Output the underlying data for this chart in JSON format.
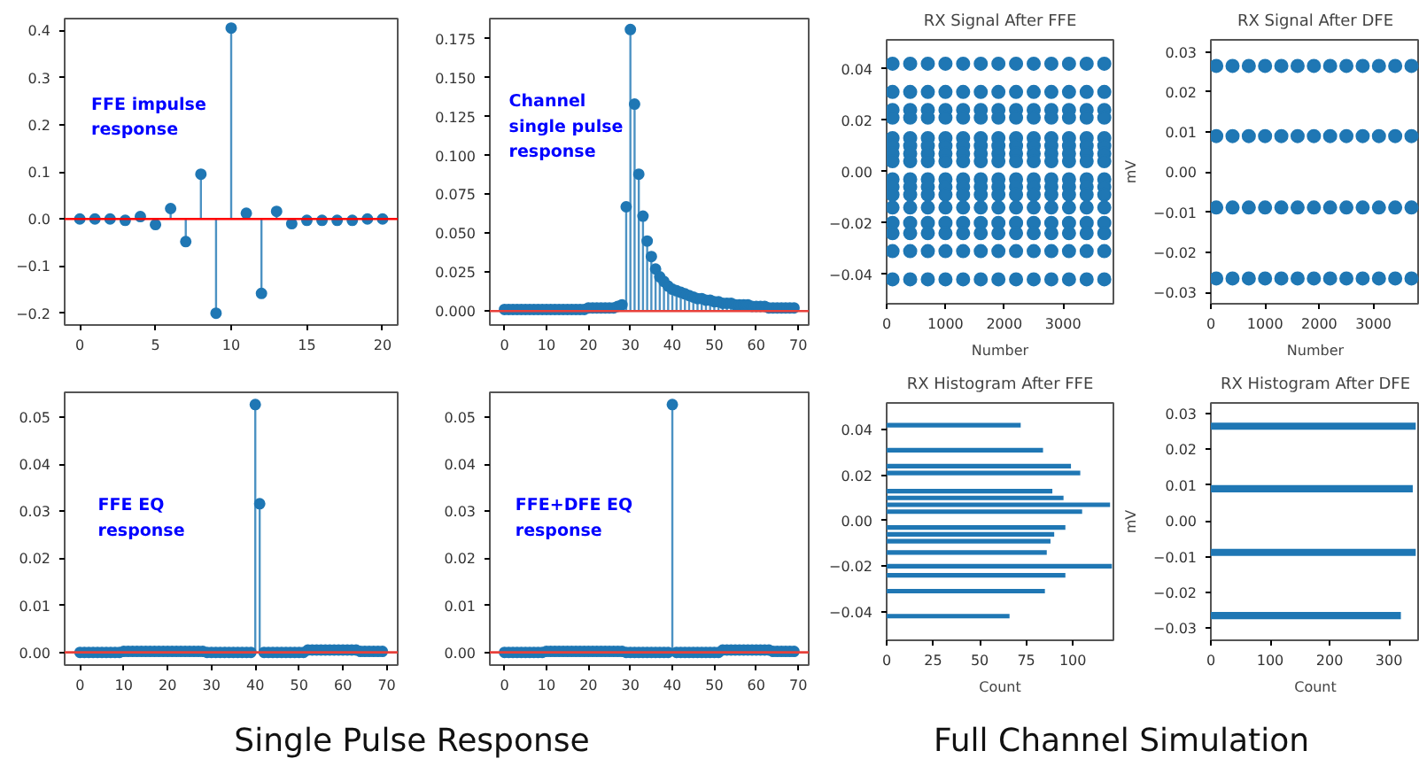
{
  "chart_data": [
    {
      "type": "lollipop",
      "annotations": [
        "FFE impulse\nresponse"
      ],
      "marker": "circle",
      "x": [
        0,
        1,
        2,
        3,
        4,
        5,
        6,
        7,
        8,
        9,
        10,
        11,
        12,
        13,
        14,
        15,
        16,
        17,
        18,
        19,
        20
      ],
      "series": [
        {
          "color": "#1f77b4",
          "values": [
            0,
            0,
            0,
            -0.003,
            0.005,
            -0.012,
            0.022,
            -0.048,
            0.095,
            -0.2,
            0.405,
            0.012,
            -0.158,
            0.016,
            -0.01,
            -0.003,
            -0.003,
            -0.003,
            -0.003,
            0,
            0
          ]
        }
      ],
      "ref_lines": [
        {
          "axis": "y",
          "value": 0,
          "color": "#ff0000"
        }
      ],
      "xlim": [
        -1,
        21
      ],
      "ylim": [
        -0.225,
        0.425
      ],
      "xticks": [
        0,
        5,
        10,
        15,
        20
      ],
      "yticks": [
        {
          "value": -0.2,
          "label": "−0.2"
        },
        {
          "value": -0.1,
          "label": "−0.1"
        },
        {
          "value": 0,
          "label": "0.0"
        },
        0.1,
        0.2,
        0.3,
        0.4
      ]
    },
    {
      "type": "lollipop",
      "annotations": [
        "Channel\nsingle pulse\nresponse"
      ],
      "marker": "circle",
      "x": [
        0,
        1,
        2,
        3,
        4,
        5,
        6,
        7,
        8,
        9,
        10,
        11,
        12,
        13,
        14,
        15,
        16,
        17,
        18,
        19,
        20,
        21,
        22,
        23,
        24,
        25,
        26,
        27,
        28,
        29,
        30,
        31,
        32,
        33,
        34,
        35,
        36,
        37,
        38,
        39,
        40,
        41,
        42,
        43,
        44,
        45,
        46,
        47,
        48,
        49,
        50,
        51,
        52,
        53,
        54,
        55,
        56,
        57,
        58,
        59,
        60,
        61,
        62,
        63,
        64,
        65,
        66,
        67,
        68,
        69
      ],
      "series": [
        {
          "color": "#1f77b4",
          "values": [
            0.001,
            0.001,
            0.001,
            0.001,
            0.001,
            0.001,
            0.001,
            0.001,
            0.001,
            0.001,
            0.001,
            0.001,
            0.001,
            0.001,
            0.001,
            0.001,
            0.001,
            0.001,
            0.001,
            0.001,
            0.002,
            0.002,
            0.002,
            0.002,
            0.002,
            0.002,
            0.002,
            0.003,
            0.004,
            0.067,
            0.181,
            0.133,
            0.088,
            0.061,
            0.045,
            0.035,
            0.027,
            0.022,
            0.019,
            0.016,
            0.014,
            0.013,
            0.012,
            0.011,
            0.01,
            0.009,
            0.008,
            0.008,
            0.007,
            0.007,
            0.006,
            0.006,
            0.005,
            0.005,
            0.005,
            0.004,
            0.004,
            0.004,
            0.004,
            0.003,
            0.003,
            0.003,
            0.003,
            0.002,
            0.002,
            0.002,
            0.002,
            0.002,
            0.002,
            0.002
          ]
        }
      ],
      "ref_lines": [
        {
          "axis": "y",
          "value": 0,
          "color": "#e8403a"
        }
      ],
      "xlim": [
        -3.5,
        72.5
      ],
      "ylim": [
        -0.009,
        0.188
      ],
      "xticks": [
        0,
        10,
        20,
        30,
        40,
        50,
        60,
        70
      ],
      "yticks": [
        {
          "value": 0,
          "label": "0.000"
        },
        {
          "value": 0.025,
          "label": "0.025"
        },
        {
          "value": 0.05,
          "label": "0.050"
        },
        {
          "value": 0.075,
          "label": "0.075"
        },
        {
          "value": 0.1,
          "label": "0.100"
        },
        {
          "value": 0.125,
          "label": "0.125"
        },
        {
          "value": 0.15,
          "label": "0.150"
        },
        {
          "value": 0.175,
          "label": "0.175"
        }
      ]
    },
    {
      "type": "lollipop",
      "annotations": [
        "FFE EQ\nresponse"
      ],
      "marker": "circle",
      "x": [
        0,
        1,
        2,
        3,
        4,
        5,
        6,
        7,
        8,
        9,
        10,
        11,
        12,
        13,
        14,
        15,
        16,
        17,
        18,
        19,
        20,
        21,
        22,
        23,
        24,
        25,
        26,
        27,
        28,
        29,
        30,
        31,
        32,
        33,
        34,
        35,
        36,
        37,
        38,
        39,
        40,
        41,
        42,
        43,
        44,
        45,
        46,
        47,
        48,
        49,
        50,
        51,
        52,
        53,
        54,
        55,
        56,
        57,
        58,
        59,
        60,
        61,
        62,
        63,
        64,
        65,
        66,
        67,
        68,
        69
      ],
      "series": [
        {
          "color": "#1f77b4",
          "values": [
            0,
            0,
            0,
            0,
            0,
            0,
            0,
            0,
            0,
            0,
            0.0002,
            0.0002,
            0.0002,
            0.0002,
            0.0002,
            0.0002,
            0.0002,
            0.0002,
            0.0002,
            0.0002,
            0.0002,
            0.0002,
            0.0002,
            0.0002,
            0.0002,
            0.0002,
            0.0002,
            0.0002,
            0.0002,
            0,
            0,
            0,
            0,
            0,
            0,
            0,
            0,
            0,
            0,
            0,
            0.0527,
            0.0316,
            0,
            0,
            0,
            0,
            0,
            0,
            0,
            0,
            0,
            0,
            0.0005,
            0.0005,
            0.0005,
            0.0005,
            0.0005,
            0.0005,
            0.0005,
            0.0005,
            0.0005,
            0.0005,
            0.0005,
            0.0005,
            0.0002,
            0.0002,
            0.0002,
            0.0002,
            0.0002,
            0.0002
          ]
        }
      ],
      "ref_lines": [
        {
          "axis": "y",
          "value": 0,
          "color": "#e8403a"
        }
      ],
      "xlim": [
        -3.5,
        72.5
      ],
      "ylim": [
        -0.0027,
        0.0553
      ],
      "xticks": [
        0,
        10,
        20,
        30,
        40,
        50,
        60,
        70
      ],
      "yticks": [
        {
          "value": 0,
          "label": "0.00"
        },
        0.01,
        0.02,
        0.03,
        0.04,
        0.05
      ]
    },
    {
      "type": "lollipop",
      "annotations": [
        "FFE+DFE EQ\nresponse"
      ],
      "marker": "circle",
      "x": [
        0,
        1,
        2,
        3,
        4,
        5,
        6,
        7,
        8,
        9,
        10,
        11,
        12,
        13,
        14,
        15,
        16,
        17,
        18,
        19,
        20,
        21,
        22,
        23,
        24,
        25,
        26,
        27,
        28,
        29,
        30,
        31,
        32,
        33,
        34,
        35,
        36,
        37,
        38,
        39,
        40,
        41,
        42,
        43,
        44,
        45,
        46,
        47,
        48,
        49,
        50,
        51,
        52,
        53,
        54,
        55,
        56,
        57,
        58,
        59,
        60,
        61,
        62,
        63,
        64,
        65,
        66,
        67,
        68,
        69
      ],
      "series": [
        {
          "color": "#1f77b4",
          "values": [
            0,
            0,
            0,
            0,
            0,
            0,
            0,
            0,
            0,
            0,
            0.0002,
            0.0002,
            0.0002,
            0.0002,
            0.0002,
            0.0002,
            0.0002,
            0.0002,
            0.0002,
            0.0002,
            0.0002,
            0.0002,
            0.0002,
            0.0002,
            0.0002,
            0.0002,
            0.0002,
            0.0002,
            0.0002,
            0,
            0,
            0,
            0,
            0,
            0,
            0,
            0,
            0,
            0,
            0,
            0.0527,
            0,
            0,
            0,
            0,
            0,
            0,
            0,
            0,
            0,
            0,
            0,
            0.0005,
            0.0005,
            0.0005,
            0.0005,
            0.0005,
            0.0005,
            0.0005,
            0.0005,
            0.0005,
            0.0005,
            0.0005,
            0.0005,
            0.0002,
            0.0002,
            0.0002,
            0.0002,
            0.0002,
            0.0002
          ]
        }
      ],
      "ref_lines": [
        {
          "axis": "y",
          "value": 0,
          "color": "#e8403a"
        }
      ],
      "xlim": [
        -3.5,
        72.5
      ],
      "ylim": [
        -0.0027,
        0.0553
      ],
      "xticks": [
        0,
        10,
        20,
        30,
        40,
        50,
        60,
        70
      ],
      "yticks": [
        {
          "value": 0,
          "label": "0.00"
        },
        0.01,
        0.02,
        0.03,
        0.04,
        0.05
      ]
    },
    {
      "type": "other",
      "title": "Single Pulse Response"
    },
    {
      "type": "scatter",
      "title": "RX Signal After FFE",
      "xlabel": "Number",
      "marker": "circle",
      "x": [
        100,
        400,
        700,
        1000,
        1300,
        1600,
        1900,
        2200,
        2500,
        2800,
        3100,
        3400,
        3700
      ],
      "series": [
        {
          "color": "#1f77b4",
          "values": [
            0.042,
            0.042,
            0.042,
            0.042,
            0.042,
            0.042,
            0.042,
            0.042,
            0.042,
            0.042,
            0.042,
            0.042,
            0.042
          ]
        },
        {
          "color": "#1f77b4",
          "values": [
            0.031,
            0.031,
            0.031,
            0.031,
            0.031,
            0.031,
            0.031,
            0.031,
            0.031,
            0.031,
            0.031,
            0.031,
            0.031
          ]
        },
        {
          "color": "#1f77b4",
          "values": [
            0.024,
            0.024,
            0.024,
            0.024,
            0.024,
            0.024,
            0.024,
            0.024,
            0.024,
            0.024,
            0.024,
            0.024,
            0.024
          ]
        },
        {
          "color": "#1f77b4",
          "values": [
            0.021,
            0.021,
            0.021,
            0.021,
            0.021,
            0.021,
            0.021,
            0.021,
            0.021,
            0.021,
            0.021,
            0.021,
            0.021
          ]
        },
        {
          "color": "#1f77b4",
          "values": [
            0.013,
            0.013,
            0.013,
            0.013,
            0.013,
            0.013,
            0.013,
            0.013,
            0.013,
            0.013,
            0.013,
            0.013,
            0.013
          ]
        },
        {
          "color": "#1f77b4",
          "values": [
            0.01,
            0.01,
            0.01,
            0.01,
            0.01,
            0.01,
            0.01,
            0.01,
            0.01,
            0.01,
            0.01,
            0.01,
            0.01
          ]
        },
        {
          "color": "#1f77b4",
          "values": [
            0.007,
            0.007,
            0.007,
            0.007,
            0.007,
            0.007,
            0.007,
            0.007,
            0.007,
            0.007,
            0.007,
            0.007,
            0.007
          ]
        },
        {
          "color": "#1f77b4",
          "values": [
            0.004,
            0.004,
            0.004,
            0.004,
            0.004,
            0.004,
            0.004,
            0.004,
            0.004,
            0.004,
            0.004,
            0.004,
            0.004
          ]
        },
        {
          "color": "#1f77b4",
          "values": [
            -0.003,
            -0.003,
            -0.003,
            -0.003,
            -0.003,
            -0.003,
            -0.003,
            -0.003,
            -0.003,
            -0.003,
            -0.003,
            -0.003,
            -0.003
          ]
        },
        {
          "color": "#1f77b4",
          "values": [
            -0.006,
            -0.006,
            -0.006,
            -0.006,
            -0.006,
            -0.006,
            -0.006,
            -0.006,
            -0.006,
            -0.006,
            -0.006,
            -0.006,
            -0.006
          ]
        },
        {
          "color": "#1f77b4",
          "values": [
            -0.009,
            -0.009,
            -0.009,
            -0.009,
            -0.009,
            -0.009,
            -0.009,
            -0.009,
            -0.009,
            -0.009,
            -0.009,
            -0.009,
            -0.009
          ]
        },
        {
          "color": "#1f77b4",
          "values": [
            -0.014,
            -0.014,
            -0.014,
            -0.014,
            -0.014,
            -0.014,
            -0.014,
            -0.014,
            -0.014,
            -0.014,
            -0.014,
            -0.014,
            -0.014
          ]
        },
        {
          "color": "#1f77b4",
          "values": [
            -0.02,
            -0.02,
            -0.02,
            -0.02,
            -0.02,
            -0.02,
            -0.02,
            -0.02,
            -0.02,
            -0.02,
            -0.02,
            -0.02,
            -0.02
          ]
        },
        {
          "color": "#1f77b4",
          "values": [
            -0.024,
            -0.024,
            -0.024,
            -0.024,
            -0.024,
            -0.024,
            -0.024,
            -0.024,
            -0.024,
            -0.024,
            -0.024,
            -0.024,
            -0.024
          ]
        },
        {
          "color": "#1f77b4",
          "values": [
            -0.031,
            -0.031,
            -0.031,
            -0.031,
            -0.031,
            -0.031,
            -0.031,
            -0.031,
            -0.031,
            -0.031,
            -0.031,
            -0.031,
            -0.031
          ]
        },
        {
          "color": "#1f77b4",
          "values": [
            -0.042,
            -0.042,
            -0.042,
            -0.042,
            -0.042,
            -0.042,
            -0.042,
            -0.042,
            -0.042,
            -0.042,
            -0.042,
            -0.042,
            -0.042
          ]
        }
      ],
      "xlim": [
        0,
        3855
      ],
      "ylim": [
        -0.0515,
        0.0513
      ],
      "xticks": [
        0,
        1000,
        2000,
        3000
      ],
      "yticks": [
        {
          "value": -0.04,
          "label": "−0.04"
        },
        {
          "value": -0.02,
          "label": "−0.02"
        },
        {
          "value": 0,
          "label": "0.00"
        },
        0.02,
        0.04
      ]
    },
    {
      "type": "scatter",
      "title": "RX Signal After DFE",
      "xlabel": "Number",
      "ylabel": "mV",
      "marker": "circle",
      "x": [
        100,
        400,
        700,
        1000,
        1300,
        1600,
        1900,
        2200,
        2500,
        2800,
        3100,
        3400,
        3700
      ],
      "series": [
        {
          "color": "#1f77b4",
          "values": [
            0.0265,
            0.0265,
            0.0265,
            0.0265,
            0.0265,
            0.0265,
            0.0265,
            0.0265,
            0.0265,
            0.0265,
            0.0265,
            0.0265,
            0.0265
          ]
        },
        {
          "color": "#1f77b4",
          "values": [
            0.009,
            0.009,
            0.009,
            0.009,
            0.009,
            0.009,
            0.009,
            0.009,
            0.009,
            0.009,
            0.009,
            0.009,
            0.009
          ]
        },
        {
          "color": "#1f77b4",
          "values": [
            -0.0088,
            -0.0088,
            -0.0088,
            -0.0088,
            -0.0088,
            -0.0088,
            -0.0088,
            -0.0088,
            -0.0088,
            -0.0088,
            -0.0088,
            -0.0088,
            -0.0088
          ]
        },
        {
          "color": "#1f77b4",
          "values": [
            -0.0265,
            -0.0265,
            -0.0265,
            -0.0265,
            -0.0265,
            -0.0265,
            -0.0265,
            -0.0265,
            -0.0265,
            -0.0265,
            -0.0265,
            -0.0265,
            -0.0265
          ]
        }
      ],
      "xlim": [
        0,
        3855
      ],
      "ylim": [
        -0.0328,
        0.033
      ],
      "xticks": [
        0,
        1000,
        2000,
        3000
      ],
      "yticks": [
        {
          "value": -0.03,
          "label": "−0.03"
        },
        {
          "value": -0.02,
          "label": "−0.02"
        },
        {
          "value": -0.01,
          "label": "−0.01"
        },
        {
          "value": 0,
          "label": "0.00"
        },
        0.01,
        0.02,
        0.03
      ]
    },
    {
      "type": "histogram",
      "title": "RX Histogram After FFE",
      "xlabel": "Count",
      "orientation": "horizontal",
      "color": "#1f77b4",
      "bins": [
        -0.043,
        -0.041,
        -0.032,
        -0.03,
        -0.025,
        -0.023,
        -0.021,
        -0.019,
        -0.015,
        -0.013,
        -0.01,
        -0.008,
        -0.007,
        -0.005,
        -0.004,
        -0.002,
        0.003,
        0.005,
        0.006,
        0.008,
        0.009,
        0.011,
        0.012,
        0.014,
        0.02,
        0.022,
        0.023,
        0.025,
        0.03,
        0.032,
        0.041,
        0.043
      ],
      "values": [
        66,
        0,
        85,
        0,
        96,
        0,
        121,
        0,
        86,
        0,
        88,
        0,
        90,
        0,
        96,
        0,
        105,
        0,
        120,
        0,
        95,
        0,
        89,
        0,
        104,
        0,
        99,
        0,
        84,
        0,
        72
      ],
      "xlim": [
        0,
        121.8
      ],
      "ylim": [
        -0.0526,
        0.0518
      ],
      "xticks": [
        0,
        25,
        50,
        75,
        100
      ],
      "yticks": [
        {
          "value": -0.04,
          "label": "−0.04"
        },
        {
          "value": -0.02,
          "label": "−0.02"
        },
        {
          "value": 0,
          "label": "0.00"
        },
        0.02,
        0.04
      ]
    },
    {
      "type": "histogram",
      "title": "RX Histogram After DFE",
      "xlabel": "Count",
      "ylabel": "mV",
      "orientation": "horizontal",
      "color": "#1f77b4",
      "bins": [
        -0.0275,
        -0.0255,
        -0.0098,
        -0.0078,
        0.008,
        0.01,
        0.0255,
        0.0275
      ],
      "values": [
        320,
        0,
        345,
        0,
        340,
        0,
        345
      ],
      "xlim": [
        0,
        352
      ],
      "ylim": [
        -0.0334,
        0.033
      ],
      "xticks": [
        0,
        100,
        200,
        300
      ],
      "yticks": [
        {
          "value": -0.03,
          "label": "−0.03"
        },
        {
          "value": -0.02,
          "label": "−0.02"
        },
        {
          "value": -0.01,
          "label": "−0.01"
        },
        {
          "value": 0,
          "label": "0.00"
        },
        0.01,
        0.02,
        0.03
      ]
    },
    {
      "type": "other",
      "title": "Full Channel Simulation"
    }
  ]
}
